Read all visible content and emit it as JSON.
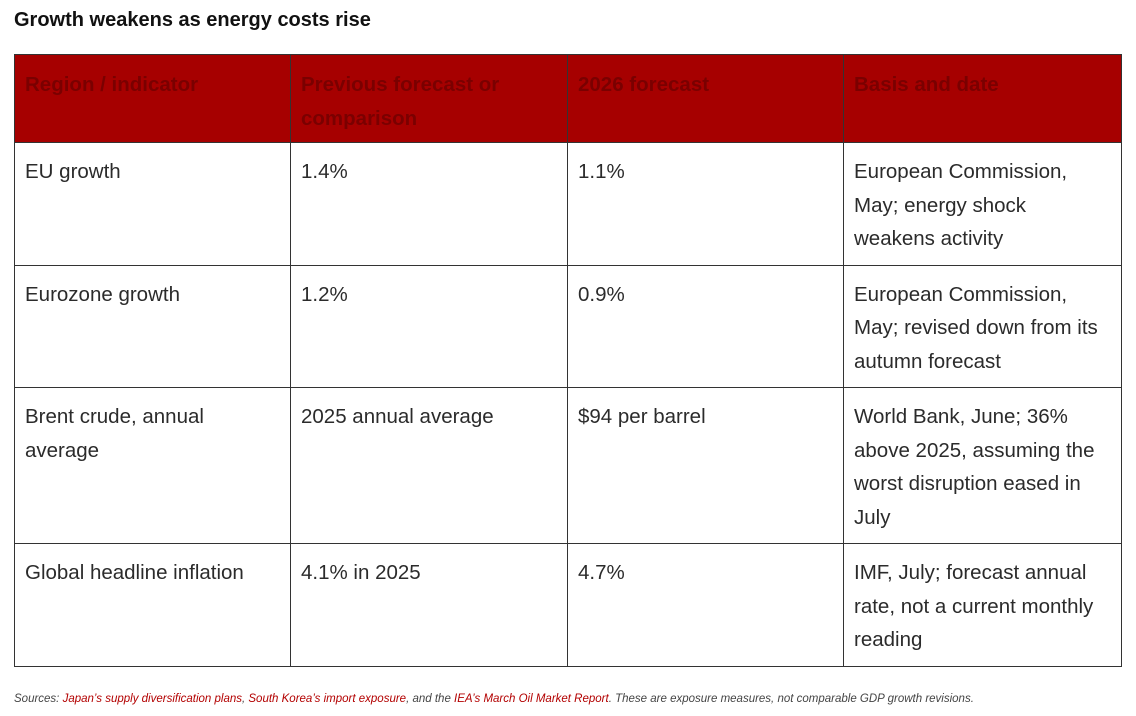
{
  "title": "Growth weakens as energy costs rise",
  "table": {
    "headers": [
      "Region / indicator",
      "Previous forecast or comparison",
      "2026 forecast",
      "Basis and date"
    ],
    "rows": [
      [
        "EU growth",
        "1.4%",
        "1.1%",
        "European Commission, May; energy shock weakens activity"
      ],
      [
        "Eurozone growth",
        "1.2%",
        "0.9%",
        "European Commission, May; revised down from its autumn forecast"
      ],
      [
        "Brent crude, annual average",
        "2025 annual average",
        "$94 per barrel",
        "World Bank, June; 36% above 2025, assuming the worst disruption eased in July"
      ],
      [
        "Global headline inflation",
        "4.1% in 2025",
        "4.7%",
        "IMF, July; forecast annual rate, not a current monthly reading"
      ]
    ]
  },
  "sources": {
    "prefix": "Sources: ",
    "link1": "Japan’s supply diversification plans",
    "sep1": ", ",
    "link2": "South Korea’s import exposure",
    "sep2": ", and the ",
    "link3": "IEA’s March Oil Market Report",
    "suffix": ". These are exposure measures, not comparable GDP growth revisions."
  },
  "colors": {
    "header_bg": "#a60000",
    "header_text": "#7a0000",
    "link": "#b30000"
  }
}
